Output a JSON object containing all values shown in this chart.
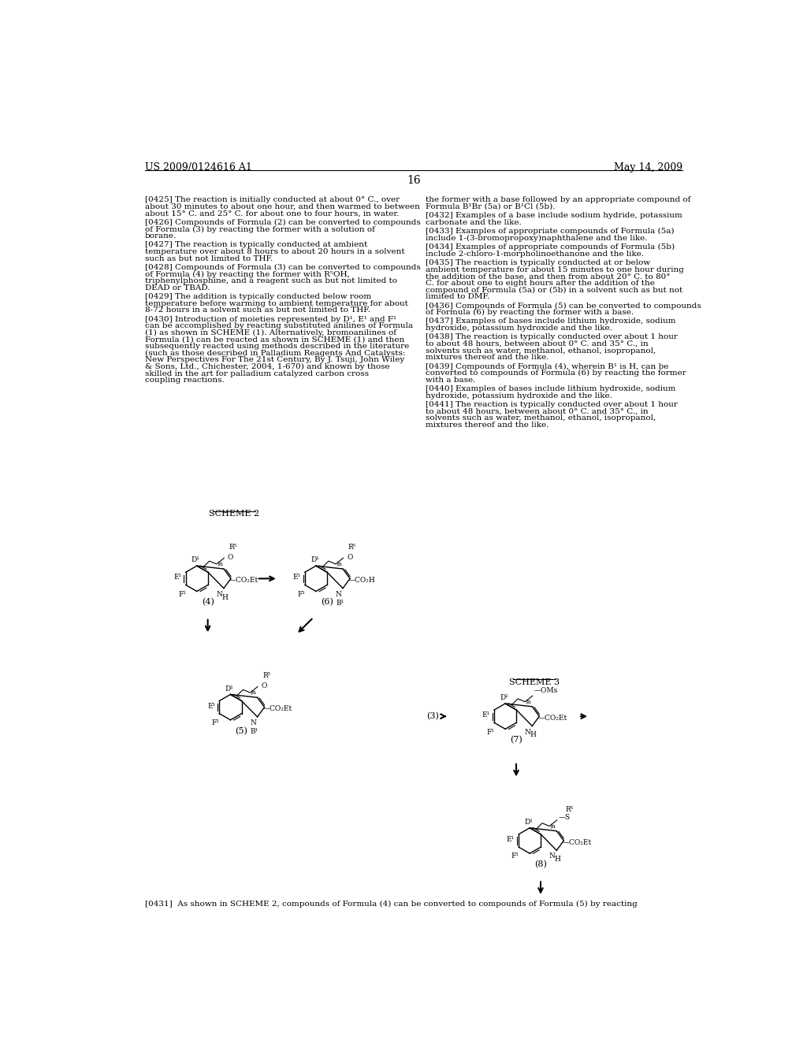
{
  "background_color": "#ffffff",
  "header_left": "US 2009/0124616 A1",
  "header_right": "May 14, 2009",
  "page_number": "16",
  "left_column_paragraphs": [
    "[0425]  The reaction is initially conducted at about 0° C., over about 30 minutes to about one hour, and then warmed to between about 15° C. and 25° C. for about one to four hours, in water.",
    "[0426]  Compounds of Formula (2) can be converted to compounds of Formula (3) by reacting the former with a solution of borane.",
    "[0427]  The reaction is typically conducted at ambient temperature over about 8 hours to about 20 hours in a solvent such as but not limited to THF.",
    "[0428]  Compounds of Formula (3) can be converted to compounds of Formula (4) by reacting the former with R⁵OH, triphenylphosphine, and a reagent such as but not limited to DEAD or TBAD.",
    "[0429]  The addition is typically conducted below room temperature before warming to ambient temperature for about 8-72 hours in a solvent such as but not limited to THF.",
    "[0430]  Introduction of moieties represented by D¹, E¹ and F¹ can be accomplished by reacting substituted anilines of Formula (1) as shown in SCHEME (1). Alternatively, bromoanilines of Formula (1) can be reacted as shown in SCHEME (1) and then subsequently reacted using methods described in the literature (such as those described in Palladium Reagents And Catalysts: New Perspectives For The 21st Century, By J. Tsuji, John Wiley & Sons, Ltd., Chichester, 2004, 1-670) and known by those skilled in the art for palladium catalyzed carbon cross coupling reactions."
  ],
  "right_column_paragraphs": [
    "the former with a base followed by an appropriate compound of Formula B¹Br (5a) or B¹Cl (5b).",
    "[0432]  Examples of a base include sodium hydride, potassium carbonate and the like.",
    "[0433]  Examples of appropriate compounds of Formula (5a) include 1-(3-bromopropoxy)naphthalene and the like.",
    "[0434]  Examples of appropriate compounds of Formula (5b) include 2-chloro-1-morpholinoethanone and the like.",
    "[0435]  The reaction is typically conducted at or below ambient temperature for about 15 minutes to one hour during the addition of the base, and then from about 20° C. to 80° C. for about one to eight hours after the addition of the compound of Formula (5a) or (5b) in a solvent such as but not limited to DMF.",
    "[0436]  Compounds of Formula (5) can be converted to compounds of Formula (6) by reacting the former with a base.",
    "[0437]  Examples of bases include lithium hydroxide, sodium hydroxide, potassium hydroxide and the like.",
    "[0438]  The reaction is typically conducted over about 1 hour to about 48 hours, between about 0° C. and 35° C., in solvents such as water, methanol, ethanol, isopropanol, mixtures thereof and the like.",
    "[0439]  Compounds of Formula (4), wherein B¹ is H, can be converted to compounds of Formula (6) by reacting the former with a base.",
    "[0440]  Examples of bases include lithium hydroxide, sodium hydroxide, potassium hydroxide and the like.",
    "[0441]  The reaction is typically conducted over about 1 hour to about 48 hours, between about 0° C. and 35° C., in solvents such as water, methanol, ethanol, isopropanol, mixtures thereof and the like."
  ],
  "footer_text": "[0431]  As shown in SCHEME 2, compounds of Formula (4) can be converted to compounds of Formula (5) by reacting"
}
